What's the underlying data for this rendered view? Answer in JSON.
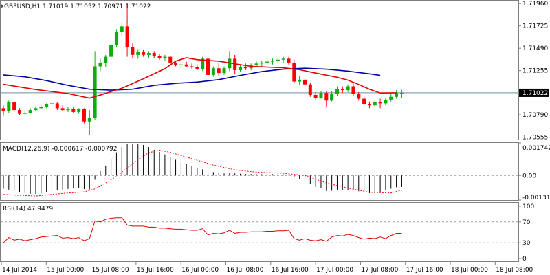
{
  "chart_data": [
    {
      "type": "candlestick",
      "panel": "price",
      "label": "GBPUSD,H1  1.71019 1.71052 1.70971 1.71022",
      "symbol": "GBPUSD",
      "timeframe": "H1",
      "ohlc_last": {
        "open": 1.71019,
        "high": 1.71052,
        "low": 1.70971,
        "close": 1.71022
      },
      "current_price": "1.71022",
      "y_ticks": [
        "1.71960",
        "1.71725",
        "1.71490",
        "1.71255",
        "1.71022",
        "1.70790",
        "1.70555"
      ],
      "ylim": [
        1.7053,
        1.7199
      ],
      "candles": [
        [
          1.7086,
          1.7089,
          1.7078,
          1.7083
        ],
        [
          1.7083,
          1.7094,
          1.7081,
          1.7092
        ],
        [
          1.7092,
          1.7093,
          1.7082,
          1.7084
        ],
        [
          1.7084,
          1.7086,
          1.7079,
          1.708
        ],
        [
          1.708,
          1.7084,
          1.7078,
          1.7081
        ],
        [
          1.7081,
          1.7086,
          1.708,
          1.7084
        ],
        [
          1.7084,
          1.7088,
          1.7083,
          1.7086
        ],
        [
          1.7086,
          1.7089,
          1.7085,
          1.7087
        ],
        [
          1.7087,
          1.7091,
          1.7086,
          1.709
        ],
        [
          1.709,
          1.7093,
          1.7088,
          1.7091
        ],
        [
          1.7091,
          1.7092,
          1.7084,
          1.7086
        ],
        [
          1.7086,
          1.7089,
          1.7083,
          1.7084
        ],
        [
          1.7084,
          1.7087,
          1.7082,
          1.7085
        ],
        [
          1.7085,
          1.7087,
          1.7081,
          1.7082
        ],
        [
          1.7082,
          1.7086,
          1.708,
          1.7085
        ],
        [
          1.7085,
          1.7086,
          1.707,
          1.7072
        ],
        [
          1.7072,
          1.7084,
          1.7058,
          1.7076
        ],
        [
          1.7076,
          1.7146,
          1.7074,
          1.713
        ],
        [
          1.713,
          1.7138,
          1.7125,
          1.7134
        ],
        [
          1.7134,
          1.7142,
          1.7129,
          1.714
        ],
        [
          1.714,
          1.7155,
          1.7137,
          1.7152
        ],
        [
          1.7152,
          1.7169,
          1.715,
          1.7166
        ],
        [
          1.7166,
          1.7176,
          1.7162,
          1.7172
        ],
        [
          1.7172,
          1.7196,
          1.714,
          1.715
        ],
        [
          1.715,
          1.7154,
          1.7139,
          1.7142
        ],
        [
          1.7142,
          1.7148,
          1.7138,
          1.7145
        ],
        [
          1.7145,
          1.7147,
          1.714,
          1.7142
        ],
        [
          1.7142,
          1.7146,
          1.7139,
          1.7144
        ],
        [
          1.7144,
          1.7146,
          1.7139,
          1.7141
        ],
        [
          1.7141,
          1.7143,
          1.7137,
          1.7139
        ],
        [
          1.7139,
          1.7142,
          1.7136,
          1.714
        ],
        [
          1.714,
          1.7141,
          1.7132,
          1.7134
        ],
        [
          1.7134,
          1.7136,
          1.713,
          1.7131
        ],
        [
          1.7131,
          1.7134,
          1.7128,
          1.7132
        ],
        [
          1.7132,
          1.7135,
          1.7129,
          1.713
        ],
        [
          1.713,
          1.7133,
          1.7127,
          1.7129
        ],
        [
          1.7129,
          1.7132,
          1.7126,
          1.7127
        ],
        [
          1.7127,
          1.714,
          1.7125,
          1.7138
        ],
        [
          1.7138,
          1.7148,
          1.7117,
          1.7121
        ],
        [
          1.7121,
          1.713,
          1.7119,
          1.7128
        ],
        [
          1.7128,
          1.7134,
          1.712,
          1.7123
        ],
        [
          1.7123,
          1.713,
          1.7121,
          1.7128
        ],
        [
          1.7128,
          1.7146,
          1.7125,
          1.7138
        ],
        [
          1.7138,
          1.7142,
          1.7122,
          1.7126
        ],
        [
          1.7126,
          1.7132,
          1.7124,
          1.7129
        ],
        [
          1.7129,
          1.7133,
          1.7126,
          1.7128
        ],
        [
          1.7128,
          1.7133,
          1.7126,
          1.7131
        ],
        [
          1.7131,
          1.7135,
          1.7129,
          1.7133
        ],
        [
          1.7133,
          1.7136,
          1.713,
          1.7134
        ],
        [
          1.7134,
          1.7137,
          1.7131,
          1.7135
        ],
        [
          1.7135,
          1.7138,
          1.7132,
          1.7136
        ],
        [
          1.7136,
          1.7139,
          1.7133,
          1.7137
        ],
        [
          1.7137,
          1.714,
          1.7134,
          1.7138
        ],
        [
          1.7138,
          1.714,
          1.7132,
          1.7134
        ],
        [
          1.7134,
          1.7137,
          1.7112,
          1.7114
        ],
        [
          1.7114,
          1.712,
          1.711,
          1.7116
        ],
        [
          1.7116,
          1.7118,
          1.7109,
          1.7111
        ],
        [
          1.7111,
          1.7113,
          1.7098,
          1.71
        ],
        [
          1.71,
          1.7103,
          1.7095,
          1.7097
        ],
        [
          1.7097,
          1.7104,
          1.7096,
          1.7102
        ],
        [
          1.7102,
          1.7104,
          1.7087,
          1.7094
        ],
        [
          1.7094,
          1.7104,
          1.7093,
          1.7101
        ],
        [
          1.7101,
          1.7109,
          1.7099,
          1.7106
        ],
        [
          1.7106,
          1.7109,
          1.7102,
          1.7105
        ],
        [
          1.7105,
          1.7111,
          1.7103,
          1.7109
        ],
        [
          1.7109,
          1.7112,
          1.7099,
          1.7101
        ],
        [
          1.7101,
          1.7103,
          1.7094,
          1.7096
        ],
        [
          1.7096,
          1.7099,
          1.7088,
          1.709
        ],
        [
          1.709,
          1.7093,
          1.7086,
          1.7089
        ],
        [
          1.7089,
          1.7094,
          1.7087,
          1.7092
        ],
        [
          1.7092,
          1.7096,
          1.7086,
          1.7091
        ],
        [
          1.7091,
          1.7097,
          1.7089,
          1.7095
        ],
        [
          1.7095,
          1.7102,
          1.7093,
          1.7098
        ],
        [
          1.7098,
          1.7105,
          1.7096,
          1.71019
        ],
        [
          1.71019,
          1.71052,
          1.70971,
          1.71022
        ]
      ],
      "ma_fast": [
        [
          0,
          1.71111
        ],
        [
          6,
          1.71056
        ],
        [
          12,
          1.71014
        ],
        [
          16,
          1.70966
        ],
        [
          18,
          1.70998
        ],
        [
          22,
          1.7107
        ],
        [
          26,
          1.7117
        ],
        [
          30,
          1.71275
        ],
        [
          32,
          1.71355
        ],
        [
          34,
          1.7139
        ],
        [
          36,
          1.7137
        ],
        [
          40,
          1.71355
        ],
        [
          46,
          1.713
        ],
        [
          52,
          1.71285
        ],
        [
          55,
          1.71265
        ],
        [
          58,
          1.7123
        ],
        [
          62,
          1.71185
        ],
        [
          64,
          1.71155
        ],
        [
          66,
          1.7111
        ],
        [
          68,
          1.7106
        ],
        [
          70,
          1.7102
        ],
        [
          73,
          1.71022
        ]
      ],
      "ma_slow": [
        [
          0,
          1.7121
        ],
        [
          4,
          1.7119
        ],
        [
          8,
          1.7115
        ],
        [
          12,
          1.711
        ],
        [
          16,
          1.7106
        ],
        [
          20,
          1.7105
        ],
        [
          24,
          1.7106
        ],
        [
          28,
          1.711
        ],
        [
          32,
          1.71122
        ],
        [
          36,
          1.71135
        ],
        [
          40,
          1.7116
        ],
        [
          44,
          1.71205
        ],
        [
          48,
          1.71245
        ],
        [
          52,
          1.7127
        ],
        [
          56,
          1.7128
        ],
        [
          60,
          1.7127
        ],
        [
          64,
          1.7125
        ],
        [
          68,
          1.71222
        ],
        [
          70,
          1.71205
        ]
      ],
      "colors": {
        "bull": "#0bae0b",
        "bear": "#ff0000",
        "ma_fast": "#e10000",
        "ma_slow": "#0000a8",
        "current_line": "#6f8da3"
      }
    },
    {
      "type": "histogram",
      "panel": "macd",
      "label": "MACD(12,26,9) -0.000617 -0.000792",
      "y_ticks": [
        "0.001742",
        "0.00",
        "-0.001318"
      ],
      "ylim": [
        -0.001318,
        0.001742
      ],
      "histogram": [
        -0.00071,
        -0.00076,
        -0.00082,
        -0.00088,
        -0.00094,
        -0.00098,
        -0.00099,
        -0.00096,
        -0.00091,
        -0.00085,
        -0.00079,
        -0.00075,
        -0.00072,
        -0.0007,
        -0.00068,
        -0.00073,
        -0.00075,
        -0.00023,
        0.00023,
        0.00053,
        0.00087,
        0.00124,
        0.00152,
        0.0017,
        0.0017,
        0.00169,
        0.00163,
        0.00152,
        0.00138,
        0.00126,
        0.00113,
        0.00098,
        0.00084,
        0.00071,
        0.0006,
        0.00049,
        0.00038,
        0.00033,
        0.00023,
        0.00018,
        0.00015,
        0.00011,
        0.00012,
        0.00011,
        9e-05,
        8e-05,
        8e-05,
        7e-05,
        7e-05,
        7e-05,
        7e-05,
        6e-05,
        6e-05,
        4e-05,
        -8e-05,
        -0.00019,
        -0.00029,
        -0.00045,
        -0.00061,
        -0.00069,
        -0.00083,
        -0.00082,
        -0.00076,
        -0.0008,
        -0.00079,
        -0.0008,
        -0.00085,
        -0.00092,
        -0.00095,
        -0.00096,
        -0.00088,
        -0.0008,
        -0.00071,
        -0.00063,
        -0.000617
      ],
      "signal": [
        [
          0,
          -0.00102
        ],
        [
          6,
          -0.0011
        ],
        [
          11,
          -0.00096
        ],
        [
          15,
          -0.00088
        ],
        [
          17,
          -0.00072
        ],
        [
          19,
          -0.0004
        ],
        [
          21,
          -5e-05
        ],
        [
          23,
          0.0004
        ],
        [
          25,
          0.00085
        ],
        [
          27,
          0.00122
        ],
        [
          29,
          0.00136
        ],
        [
          31,
          0.00124
        ],
        [
          35,
          0.0009
        ],
        [
          39,
          0.00056
        ],
        [
          43,
          0.0003
        ],
        [
          47,
          0.00018
        ],
        [
          52,
          0.00012
        ],
        [
          56,
          0.0
        ],
        [
          60,
          -0.0004
        ],
        [
          64,
          -0.00068
        ],
        [
          68,
          -0.0009
        ],
        [
          72,
          -0.00094
        ],
        [
          74,
          -0.000792
        ]
      ],
      "colors": {
        "histogram": "#000000",
        "signal": "#ff0000"
      }
    },
    {
      "type": "line",
      "panel": "rsi",
      "label": "RSI(14) 47.9479",
      "y_ticks": [
        "100",
        "70",
        "30",
        "0"
      ],
      "ylim": [
        0,
        100
      ],
      "levels": [
        70,
        30
      ],
      "values": [
        30,
        40,
        35,
        37,
        34,
        36,
        38,
        41,
        42,
        43,
        44,
        39,
        40,
        38,
        40,
        34,
        38,
        72,
        70,
        75,
        77,
        78,
        78,
        64,
        62,
        62,
        62,
        60,
        60,
        58,
        58,
        57,
        56,
        56,
        55,
        54,
        54,
        57,
        45,
        48,
        47,
        49,
        54,
        48,
        50,
        50,
        51,
        51,
        51,
        52,
        52,
        53,
        53,
        54,
        38,
        35,
        38,
        35,
        34,
        36,
        33,
        41,
        44,
        43,
        46,
        44,
        40,
        37,
        39,
        38,
        41,
        38,
        44,
        48,
        48
      ],
      "color": "#e10000"
    }
  ],
  "x_axis": {
    "tick_labels": [
      "14 Jul 2014",
      "15 Jul 00:00",
      "15 Jul 08:00",
      "15 Jul 16:00",
      "16 Jul 00:00",
      "16 Jul 08:00",
      "16 Jul 16:00",
      "17 Jul 00:00",
      "17 Jul 08:00",
      "17 Jul 16:00",
      "18 Jul 00:00",
      "18 Jul 08:00"
    ],
    "tick_candles": [
      0,
      10,
      18,
      26,
      34,
      42,
      50,
      58,
      66,
      74,
      82,
      90
    ]
  }
}
